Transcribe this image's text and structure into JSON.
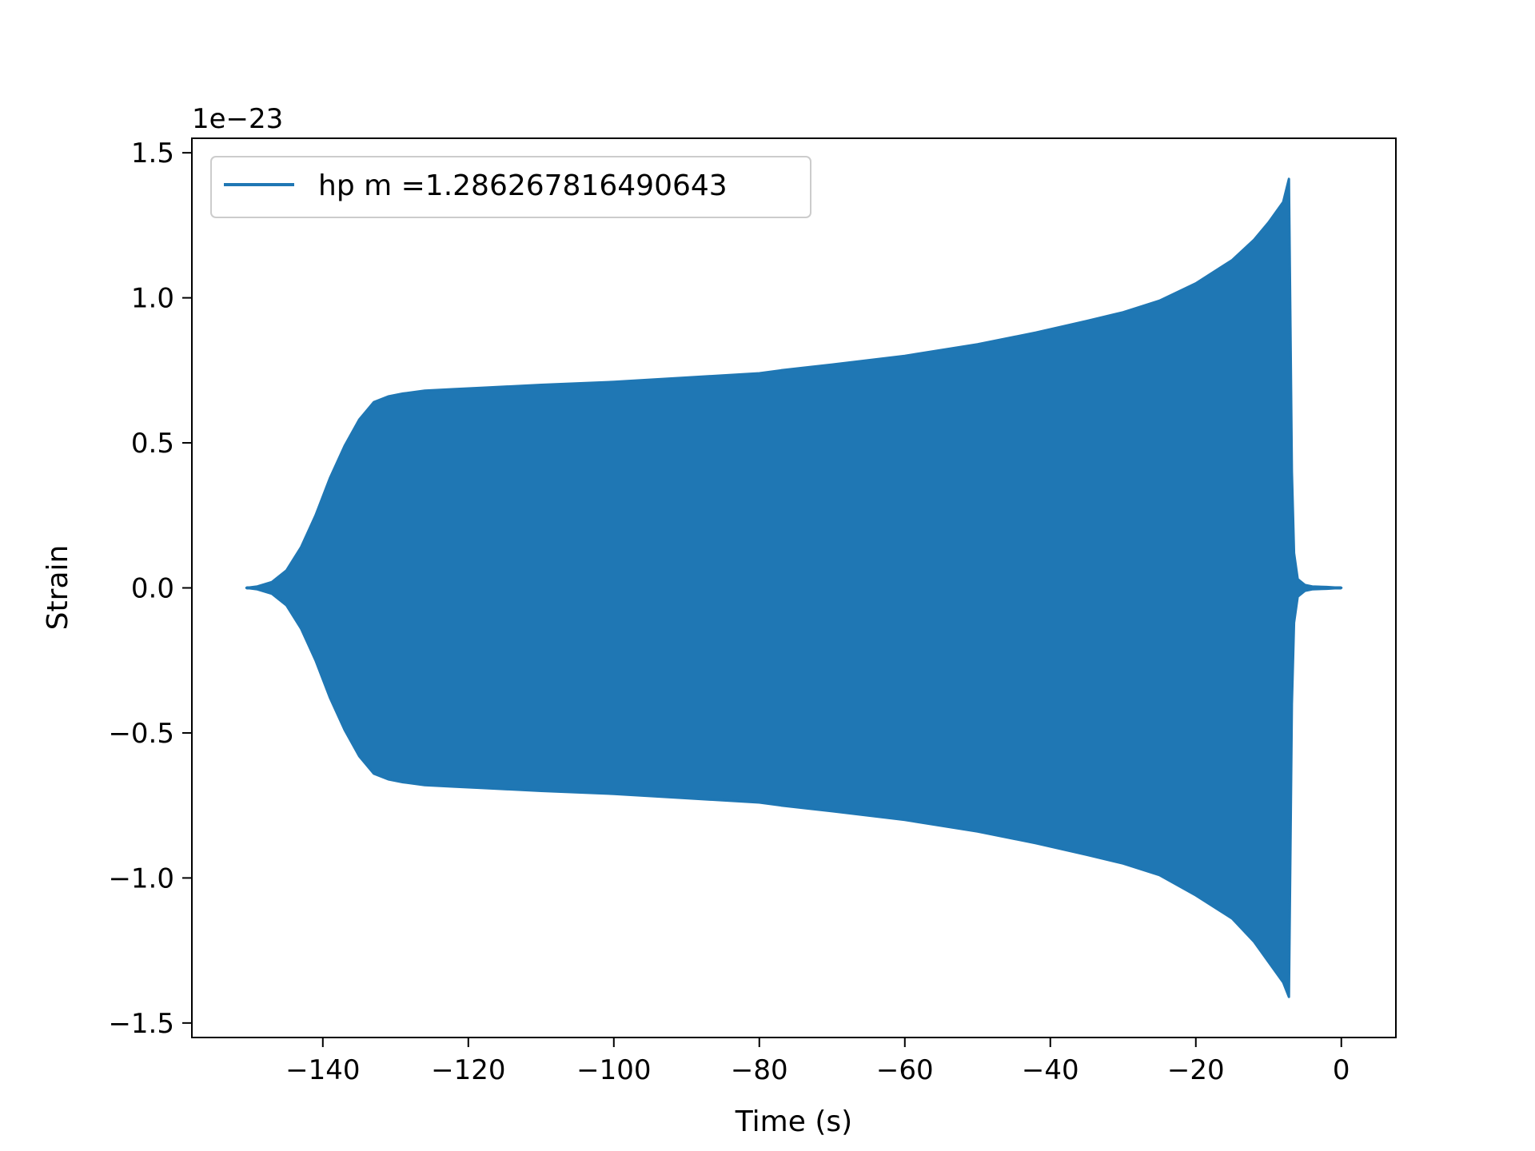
{
  "chart_data": {
    "type": "area",
    "xlabel": "Time (s)",
    "ylabel": "Strain",
    "y_offset_label": "1e−23",
    "xlim": [
      -158,
      7.5
    ],
    "ylim": [
      -1.55,
      1.55
    ],
    "y_scale_factor": 1e-23,
    "grid": false,
    "legend_position": "top-left",
    "x_ticks": [
      {
        "value": -140,
        "label": "−140"
      },
      {
        "value": -120,
        "label": "−120"
      },
      {
        "value": -100,
        "label": "−100"
      },
      {
        "value": -80,
        "label": "−80"
      },
      {
        "value": -60,
        "label": "−60"
      },
      {
        "value": -40,
        "label": "−40"
      },
      {
        "value": -20,
        "label": "−20"
      },
      {
        "value": 0,
        "label": "0"
      }
    ],
    "y_ticks": [
      {
        "value": 1.5,
        "label": "1.5"
      },
      {
        "value": 1.0,
        "label": "1.0"
      },
      {
        "value": 0.5,
        "label": "0.5"
      },
      {
        "value": 0.0,
        "label": "0.0"
      },
      {
        "value": -0.5,
        "label": "−0.5"
      },
      {
        "value": -1.0,
        "label": "−1.0"
      },
      {
        "value": -1.5,
        "label": "−1.5"
      }
    ],
    "series": [
      {
        "name": "hp m =1.286267816490643",
        "color": "#1f77b4",
        "envelope": {
          "x": [
            -150.5,
            -149,
            -147,
            -145,
            -143,
            -141,
            -139,
            -137,
            -135,
            -133,
            -131,
            -129,
            -126,
            -122,
            -118,
            -110,
            -100,
            -90,
            -80,
            -77,
            -70,
            -60,
            -50,
            -42,
            -35,
            -30,
            -25,
            -20,
            -15,
            -12,
            -10,
            -8,
            -7.2,
            -7,
            -6.8,
            -6.5,
            -6,
            -5,
            -4,
            -2,
            0
          ],
          "upper": [
            0.0,
            0.005,
            0.02,
            0.06,
            0.14,
            0.25,
            0.38,
            0.49,
            0.58,
            0.64,
            0.66,
            0.67,
            0.68,
            0.685,
            0.69,
            0.7,
            0.71,
            0.725,
            0.74,
            0.75,
            0.77,
            0.8,
            0.84,
            0.88,
            0.92,
            0.95,
            0.99,
            1.05,
            1.13,
            1.2,
            1.26,
            1.33,
            1.41,
            0.9,
            0.4,
            0.12,
            0.03,
            0.01,
            0.005,
            0.003,
            0.0
          ],
          "lower": [
            0.0,
            -0.005,
            -0.02,
            -0.06,
            -0.14,
            -0.25,
            -0.38,
            -0.49,
            -0.58,
            -0.64,
            -0.66,
            -0.67,
            -0.68,
            -0.685,
            -0.69,
            -0.7,
            -0.71,
            -0.725,
            -0.74,
            -0.75,
            -0.77,
            -0.8,
            -0.84,
            -0.88,
            -0.92,
            -0.95,
            -0.99,
            -1.06,
            -1.14,
            -1.22,
            -1.29,
            -1.36,
            -1.41,
            -0.9,
            -0.4,
            -0.12,
            -0.03,
            -0.01,
            -0.005,
            -0.003,
            0.0
          ]
        }
      }
    ]
  }
}
